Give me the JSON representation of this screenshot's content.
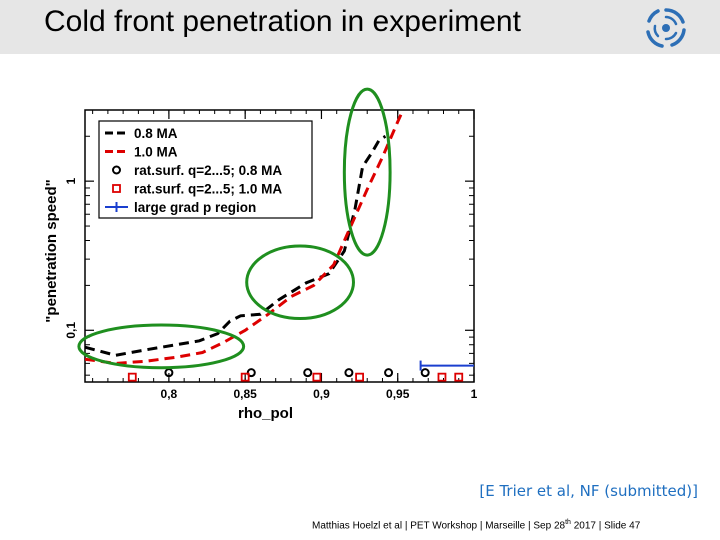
{
  "slide": {
    "title": "Cold front penetration in experiment",
    "citation": "[E Trier et al, NF (submitted)]",
    "footer": {
      "before_sup": "Matthias Hoelzl et al | PET Workshop | Marseille | Sep 28",
      "sup": "th",
      "after_sup": " 2017 |  Slide 47"
    },
    "logo_icon": "ipp-logo-icon"
  },
  "chart_data": {
    "type": "line",
    "xlabel": "rho_pol",
    "ylabel": "\"penetration speed\"",
    "xlim": [
      0.745,
      1.0
    ],
    "ylim": [
      0.045,
      3.0
    ],
    "y_scale": "log",
    "x_ticks": [
      {
        "value": 0.8,
        "label": "0,8"
      },
      {
        "value": 0.85,
        "label": "0,85"
      },
      {
        "value": 0.9,
        "label": "0,9"
      },
      {
        "value": 0.95,
        "label": "0,95"
      },
      {
        "value": 1.0,
        "label": "1"
      }
    ],
    "y_ticks": [
      {
        "value": 0.1,
        "label": "0,1"
      },
      {
        "value": 1,
        "label": "1"
      }
    ],
    "legend_position": "top-left",
    "series": [
      {
        "name": "0.8 MA",
        "style": "dashed",
        "color": "#000000",
        "x": [
          0.745,
          0.765,
          0.785,
          0.805,
          0.82,
          0.832,
          0.84,
          0.847,
          0.86,
          0.872,
          0.89,
          0.905,
          0.915,
          0.922,
          0.927,
          0.933,
          0.938,
          0.942
        ],
        "y": [
          0.077,
          0.068,
          0.074,
          0.08,
          0.085,
          0.095,
          0.115,
          0.125,
          0.128,
          0.16,
          0.208,
          0.24,
          0.34,
          0.65,
          1.25,
          1.55,
          1.9,
          2.0
        ]
      },
      {
        "name": "1.0 MA",
        "style": "dashed",
        "color": "#dd0000",
        "x": [
          0.745,
          0.765,
          0.785,
          0.805,
          0.822,
          0.835,
          0.85,
          0.865,
          0.88,
          0.895,
          0.908,
          0.92,
          0.93,
          0.94,
          0.95,
          0.96
        ],
        "y": [
          0.064,
          0.06,
          0.062,
          0.066,
          0.071,
          0.082,
          0.1,
          0.128,
          0.168,
          0.2,
          0.275,
          0.52,
          0.88,
          1.45,
          2.5,
          4.2
        ]
      },
      {
        "name": "rat.surf. q=2...5; 0.8 MA",
        "style": "marker-circle",
        "color": "#000000",
        "x": [
          0.8,
          0.854,
          0.891,
          0.918,
          0.944,
          0.968
        ],
        "y": [
          0.052,
          0.052,
          0.052,
          0.052,
          0.052,
          0.052
        ]
      },
      {
        "name": "rat.surf. q=2...5; 1.0 MA",
        "style": "marker-square",
        "color": "#dd0000",
        "x": [
          0.776,
          0.85,
          0.897,
          0.925,
          0.979,
          0.99
        ],
        "y": [
          0.0485,
          0.0485,
          0.0485,
          0.0485,
          0.0485,
          0.0485
        ]
      },
      {
        "name": "large grad p region",
        "style": "range",
        "color": "#1a3fcf",
        "x": [
          0.965,
          1.0
        ],
        "y": [
          0.058,
          0.058
        ]
      }
    ],
    "annotations": [
      {
        "type": "ellipse",
        "color": "#1f8f1f",
        "x_center": 0.795,
        "y_center": 0.078,
        "x_radius": 0.054,
        "y_factor": 1.39
      },
      {
        "type": "ellipse",
        "color": "#1f8f1f",
        "x_center": 0.886,
        "y_center": 0.21,
        "x_radius": 0.035,
        "y_factor": 1.75
      },
      {
        "type": "ellipse",
        "color": "#1f8f1f",
        "x_center": 0.93,
        "y_center": 1.15,
        "x_radius": 0.015,
        "y_factor": 3.6
      }
    ]
  }
}
